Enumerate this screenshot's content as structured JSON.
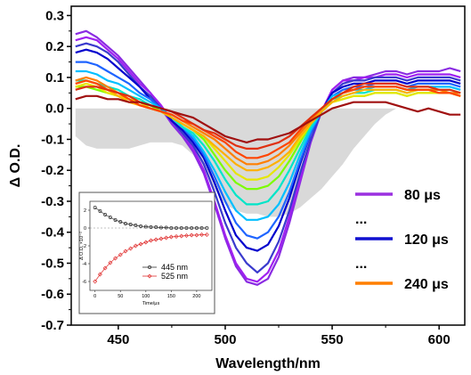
{
  "chart_data": [
    {
      "type": "line",
      "xlabel": "Wavelength/nm",
      "ylabel": "Δ O.D.",
      "xlim": [
        428,
        612
      ],
      "ylim": [
        -0.7,
        0.33
      ],
      "x_ticks": [
        450,
        500,
        550,
        600
      ],
      "x_tick_labels": [
        "450",
        "500",
        "550",
        "600"
      ],
      "y_ticks": [
        -0.7,
        -0.6,
        -0.5,
        -0.4,
        -0.3,
        -0.2,
        -0.1,
        0.0,
        0.1,
        0.2,
        0.3
      ],
      "y_tick_labels": [
        "-0.7",
        "-0.6",
        "-0.5",
        "-0.4",
        "-0.3",
        "-0.2",
        "-0.1",
        "0.0",
        "0.1",
        "0.2",
        "0.3"
      ],
      "x": [
        430,
        435,
        440,
        445,
        450,
        455,
        460,
        465,
        470,
        475,
        480,
        485,
        490,
        495,
        500,
        505,
        510,
        515,
        520,
        525,
        530,
        535,
        540,
        545,
        550,
        555,
        560,
        565,
        570,
        575,
        580,
        585,
        590,
        595,
        600,
        605,
        610
      ],
      "shaded_area": {
        "color": "#d9d9d9",
        "values": [
          -0.09,
          -0.12,
          -0.13,
          -0.13,
          -0.13,
          -0.13,
          -0.12,
          -0.11,
          -0.11,
          -0.11,
          -0.12,
          -0.15,
          -0.2,
          -0.26,
          -0.31,
          -0.33,
          -0.34,
          -0.34,
          -0.35,
          -0.35,
          -0.34,
          -0.32,
          -0.29,
          -0.26,
          -0.22,
          -0.18,
          -0.13,
          -0.09,
          -0.05,
          -0.02,
          0.0,
          0.0,
          0.0,
          0.0,
          0.0,
          0.0,
          0.0
        ]
      },
      "series": [
        {
          "color": "#8a2be2",
          "values": [
            0.24,
            0.25,
            0.23,
            0.2,
            0.17,
            0.13,
            0.09,
            0.05,
            0.0,
            -0.05,
            -0.09,
            -0.14,
            -0.21,
            -0.31,
            -0.42,
            -0.51,
            -0.56,
            -0.57,
            -0.55,
            -0.48,
            -0.37,
            -0.24,
            -0.11,
            -0.01,
            0.06,
            0.09,
            0.1,
            0.1,
            0.11,
            0.12,
            0.12,
            0.11,
            0.12,
            0.12,
            0.12,
            0.13,
            0.12
          ]
        },
        {
          "color": "#a020f0",
          "values": [
            0.22,
            0.23,
            0.22,
            0.19,
            0.16,
            0.12,
            0.08,
            0.05,
            0.01,
            -0.04,
            -0.08,
            -0.13,
            -0.2,
            -0.3,
            -0.41,
            -0.5,
            -0.55,
            -0.56,
            -0.53,
            -0.46,
            -0.35,
            -0.23,
            -0.1,
            -0.01,
            0.06,
            0.09,
            0.09,
            0.1,
            0.1,
            0.11,
            0.11,
            0.1,
            0.11,
            0.11,
            0.11,
            0.11,
            0.1
          ]
        },
        {
          "color": "#3a3acd",
          "values": [
            0.2,
            0.21,
            0.2,
            0.18,
            0.15,
            0.11,
            0.07,
            0.04,
            0.0,
            -0.04,
            -0.08,
            -0.12,
            -0.18,
            -0.27,
            -0.37,
            -0.45,
            -0.5,
            -0.53,
            -0.5,
            -0.43,
            -0.33,
            -0.21,
            -0.1,
            -0.01,
            0.05,
            0.08,
            0.09,
            0.09,
            0.1,
            0.1,
            0.1,
            0.09,
            0.1,
            0.1,
            0.1,
            0.1,
            0.09
          ]
        },
        {
          "color": "#0000cd",
          "values": [
            0.18,
            0.19,
            0.18,
            0.16,
            0.13,
            0.1,
            0.07,
            0.03,
            0.0,
            -0.04,
            -0.07,
            -0.11,
            -0.16,
            -0.24,
            -0.33,
            -0.41,
            -0.45,
            -0.46,
            -0.44,
            -0.38,
            -0.29,
            -0.18,
            -0.08,
            -0.01,
            0.05,
            0.07,
            0.08,
            0.08,
            0.09,
            0.09,
            0.09,
            0.08,
            0.09,
            0.09,
            0.09,
            0.09,
            0.08
          ]
        },
        {
          "color": "#1e64ff",
          "values": [
            0.15,
            0.15,
            0.14,
            0.12,
            0.1,
            0.08,
            0.05,
            0.03,
            0.0,
            -0.03,
            -0.06,
            -0.1,
            -0.15,
            -0.22,
            -0.3,
            -0.37,
            -0.41,
            -0.42,
            -0.4,
            -0.35,
            -0.27,
            -0.17,
            -0.08,
            -0.01,
            0.04,
            0.06,
            0.07,
            0.07,
            0.08,
            0.08,
            0.08,
            0.07,
            0.08,
            0.08,
            0.08,
            0.08,
            0.07
          ]
        },
        {
          "color": "#00bfff",
          "values": [
            0.12,
            0.12,
            0.11,
            0.09,
            0.08,
            0.06,
            0.04,
            0.02,
            0.0,
            -0.03,
            -0.06,
            -0.09,
            -0.14,
            -0.2,
            -0.27,
            -0.33,
            -0.36,
            -0.36,
            -0.35,
            -0.31,
            -0.24,
            -0.15,
            -0.07,
            -0.01,
            0.04,
            0.05,
            0.06,
            0.06,
            0.07,
            0.07,
            0.07,
            0.06,
            0.07,
            0.07,
            0.07,
            0.07,
            0.06
          ]
        },
        {
          "color": "#00e5c8",
          "values": [
            0.09,
            0.09,
            0.08,
            0.07,
            0.06,
            0.04,
            0.03,
            0.01,
            -0.01,
            -0.03,
            -0.06,
            -0.08,
            -0.12,
            -0.17,
            -0.23,
            -0.28,
            -0.31,
            -0.31,
            -0.3,
            -0.26,
            -0.2,
            -0.13,
            -0.06,
            -0.01,
            0.03,
            0.04,
            0.05,
            0.05,
            0.06,
            0.06,
            0.06,
            0.05,
            0.06,
            0.06,
            0.06,
            0.06,
            0.05
          ]
        },
        {
          "color": "#7cfc00",
          "values": [
            0.07,
            0.07,
            0.06,
            0.05,
            0.04,
            0.03,
            0.02,
            0.01,
            -0.01,
            -0.03,
            -0.05,
            -0.07,
            -0.1,
            -0.15,
            -0.2,
            -0.24,
            -0.26,
            -0.26,
            -0.25,
            -0.22,
            -0.17,
            -0.11,
            -0.05,
            -0.01,
            0.02,
            0.03,
            0.04,
            0.04,
            0.05,
            0.05,
            0.05,
            0.04,
            0.05,
            0.05,
            0.05,
            0.05,
            0.04
          ]
        },
        {
          "color": "#e6e600",
          "values": [
            0.07,
            0.08,
            0.07,
            0.05,
            0.04,
            0.03,
            0.02,
            0.0,
            -0.01,
            -0.03,
            -0.05,
            -0.07,
            -0.09,
            -0.13,
            -0.17,
            -0.21,
            -0.23,
            -0.23,
            -0.22,
            -0.19,
            -0.15,
            -0.1,
            -0.05,
            -0.01,
            0.02,
            0.03,
            0.04,
            0.04,
            0.05,
            0.05,
            0.05,
            0.04,
            0.05,
            0.05,
            0.05,
            0.05,
            0.04
          ]
        },
        {
          "color": "#ffb000",
          "values": [
            0.08,
            0.09,
            0.08,
            0.06,
            0.04,
            0.02,
            0.01,
            0.0,
            -0.01,
            -0.03,
            -0.05,
            -0.07,
            -0.09,
            -0.12,
            -0.15,
            -0.18,
            -0.2,
            -0.2,
            -0.19,
            -0.17,
            -0.14,
            -0.09,
            -0.05,
            -0.01,
            0.02,
            0.04,
            0.05,
            0.06,
            0.06,
            0.06,
            0.06,
            0.05,
            0.06,
            0.06,
            0.05,
            0.05,
            0.04
          ]
        },
        {
          "color": "#ff7f00",
          "values": [
            0.09,
            0.1,
            0.09,
            0.07,
            0.05,
            0.03,
            0.01,
            0.0,
            -0.01,
            -0.02,
            -0.04,
            -0.06,
            -0.08,
            -0.1,
            -0.13,
            -0.16,
            -0.18,
            -0.18,
            -0.17,
            -0.15,
            -0.12,
            -0.08,
            -0.04,
            0.0,
            0.03,
            0.05,
            0.06,
            0.07,
            0.07,
            0.07,
            0.07,
            0.06,
            0.06,
            0.06,
            0.06,
            0.05,
            0.05
          ]
        },
        {
          "color": "#ff4500",
          "values": [
            0.08,
            0.09,
            0.08,
            0.06,
            0.05,
            0.03,
            0.01,
            0.0,
            -0.01,
            -0.02,
            -0.04,
            -0.05,
            -0.07,
            -0.09,
            -0.11,
            -0.14,
            -0.16,
            -0.16,
            -0.15,
            -0.13,
            -0.11,
            -0.07,
            -0.03,
            0.0,
            0.03,
            0.05,
            0.06,
            0.07,
            0.07,
            0.07,
            0.07,
            0.06,
            0.06,
            0.06,
            0.05,
            0.05,
            0.04
          ]
        },
        {
          "color": "#e03010",
          "values": [
            0.06,
            0.07,
            0.07,
            0.06,
            0.05,
            0.04,
            0.02,
            0.01,
            0.0,
            -0.01,
            -0.03,
            -0.05,
            -0.07,
            -0.08,
            -0.1,
            -0.12,
            -0.13,
            -0.13,
            -0.12,
            -0.11,
            -0.09,
            -0.06,
            -0.03,
            0.0,
            0.03,
            0.05,
            0.07,
            0.08,
            0.08,
            0.08,
            0.08,
            0.07,
            0.07,
            0.07,
            0.06,
            0.06,
            0.05
          ]
        },
        {
          "color": "#a01010",
          "values": [
            0.03,
            0.04,
            0.04,
            0.03,
            0.03,
            0.02,
            0.02,
            0.01,
            0.0,
            -0.01,
            -0.02,
            -0.03,
            -0.05,
            -0.07,
            -0.09,
            -0.1,
            -0.11,
            -0.1,
            -0.1,
            -0.09,
            -0.08,
            -0.06,
            -0.04,
            -0.02,
            0.0,
            0.01,
            0.02,
            0.02,
            0.02,
            0.02,
            0.01,
            0.0,
            -0.01,
            0.0,
            -0.01,
            -0.02,
            -0.02
          ]
        }
      ],
      "legend": {
        "placement": "lower-right",
        "entries": [
          {
            "label": "80 μs",
            "color": "#9b30e0"
          },
          {
            "label": "...",
            "color": null
          },
          {
            "label": "120 μs",
            "color": "#1010d0"
          },
          {
            "label": "...",
            "color": null
          },
          {
            "label": "240 μs",
            "color": "#ff7f00"
          }
        ]
      }
    },
    {
      "type": "scatter",
      "placement": "lower-left inset",
      "xlabel": "Time/μs",
      "ylabel": "Δ O.D. ×10⁻²",
      "xlim": [
        -10,
        230
      ],
      "ylim": [
        -7,
        3
      ],
      "x_ticks": [
        0,
        50,
        100,
        150,
        200
      ],
      "x_tick_labels": [
        "0",
        "50",
        "100",
        "150",
        "200"
      ],
      "y_ticks": [
        2,
        0,
        -2,
        -4,
        -6
      ],
      "y_tick_labels": [
        "2",
        "0",
        "-2",
        "-4",
        "-6"
      ],
      "legend": {
        "placement": "lower-center",
        "entries": [
          {
            "label": "445 nm",
            "color": "#333333"
          },
          {
            "label": "525 nm",
            "color": "#e03030"
          }
        ]
      },
      "series": [
        {
          "name": "445 nm",
          "color": "#333333",
          "marker": "circle",
          "x": [
            0,
            10,
            20,
            30,
            40,
            50,
            60,
            70,
            80,
            90,
            100,
            110,
            120,
            130,
            140,
            150,
            160,
            170,
            180,
            190,
            200,
            210,
            220
          ],
          "values": [
            2.3,
            1.9,
            1.5,
            1.2,
            0.9,
            0.7,
            0.5,
            0.4,
            0.3,
            0.2,
            0.15,
            0.1,
            0.1,
            0.05,
            0.05,
            0.0,
            0.0,
            0.0,
            0.0,
            0.0,
            0.0,
            0.0,
            0.0
          ]
        },
        {
          "name": "525 nm",
          "color": "#e03030",
          "marker": "diamond",
          "x": [
            0,
            10,
            20,
            30,
            40,
            50,
            60,
            70,
            80,
            90,
            100,
            110,
            120,
            130,
            140,
            150,
            160,
            170,
            180,
            190,
            200,
            210,
            220
          ],
          "values": [
            -6.0,
            -5.2,
            -4.5,
            -3.9,
            -3.4,
            -3.0,
            -2.6,
            -2.3,
            -2.0,
            -1.8,
            -1.6,
            -1.4,
            -1.3,
            -1.2,
            -1.1,
            -1.0,
            -0.95,
            -0.9,
            -0.85,
            -0.8,
            -0.8,
            -0.75,
            -0.75
          ]
        }
      ]
    }
  ]
}
